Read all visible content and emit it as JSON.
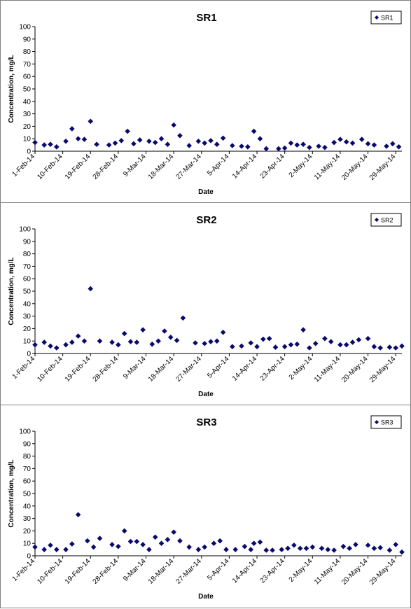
{
  "chart_data": [
    {
      "type": "scatter",
      "title": "SR1",
      "xlabel": "Date",
      "ylabel": "Concentration, mg/L",
      "ylim": [
        0,
        100
      ],
      "yticks": [
        "0",
        "10",
        "20",
        "30",
        "40",
        "50",
        "60",
        "70",
        "80",
        "90",
        "100"
      ],
      "xlim": [
        "1-Feb-14",
        "31-May-14"
      ],
      "xticks": [
        "1-Feb-14",
        "10-Feb-14",
        "19-Feb-14",
        "28-Feb-14",
        "9-Mar-14",
        "18-Mar-14",
        "27-Mar-14",
        "5-Apr-14",
        "14-Apr-14",
        "23-Apr-14",
        "2-May-14",
        "11-May-14",
        "20-May-14",
        "29-May-14"
      ],
      "grid": false,
      "legend_position": "top-right",
      "marker_color": "#0a0a6e",
      "series": [
        {
          "name": "SR1",
          "x": [
            "1-Feb-14",
            "4-Feb-14",
            "6-Feb-14",
            "8-Feb-14",
            "11-Feb-14",
            "13-Feb-14",
            "15-Feb-14",
            "17-Feb-14",
            "19-Feb-14",
            "21-Feb-14",
            "25-Feb-14",
            "27-Feb-14",
            "1-Mar-14",
            "3-Mar-14",
            "5-Mar-14",
            "7-Mar-14",
            "10-Mar-14",
            "12-Mar-14",
            "14-Mar-14",
            "16-Mar-14",
            "18-Mar-14",
            "20-Mar-14",
            "23-Mar-14",
            "26-Mar-14",
            "28-Mar-14",
            "30-Mar-14",
            "1-Apr-14",
            "3-Apr-14",
            "6-Apr-14",
            "9-Apr-14",
            "11-Apr-14",
            "13-Apr-14",
            "15-Apr-14",
            "17-Apr-14",
            "21-Apr-14",
            "23-Apr-14",
            "25-Apr-14",
            "27-Apr-14",
            "29-Apr-14",
            "1-May-14",
            "4-May-14",
            "6-May-14",
            "9-May-14",
            "11-May-14",
            "13-May-14",
            "15-May-14",
            "18-May-14",
            "20-May-14",
            "22-May-14",
            "26-May-14",
            "28-May-14",
            "30-May-14"
          ],
          "y": [
            7,
            5,
            5.5,
            3.5,
            8,
            18,
            10,
            9.5,
            24,
            5.5,
            5,
            6.5,
            8.5,
            16,
            6,
            9,
            8,
            7,
            10,
            5.5,
            21,
            12.5,
            4.5,
            8,
            6.5,
            8.5,
            5.5,
            10.5,
            4.5,
            4,
            3.5,
            16,
            10,
            2,
            2,
            2.5,
            6.5,
            5,
            5.5,
            3,
            4,
            3,
            7,
            9.5,
            7.5,
            6.5,
            9.5,
            6,
            5,
            4,
            6,
            3.5
          ]
        }
      ]
    },
    {
      "type": "scatter",
      "title": "SR2",
      "xlabel": "Date",
      "ylabel": "Concentration, mg/L",
      "ylim": [
        0,
        100
      ],
      "yticks": [
        "0",
        "10",
        "20",
        "30",
        "40",
        "50",
        "60",
        "70",
        "80",
        "90",
        "100"
      ],
      "xlim": [
        "1-Feb-14",
        "31-May-14"
      ],
      "xticks": [
        "1-Feb-14",
        "10-Feb-14",
        "19-Feb-14",
        "28-Feb-14",
        "9-Mar-14",
        "18-Mar-14",
        "27-Mar-14",
        "5-Apr-14",
        "14-Apr-14",
        "23-Apr-14",
        "2-May-14",
        "11-May-14",
        "20-May-14",
        "29-May-14"
      ],
      "grid": false,
      "legend_position": "top-right",
      "marker_color": "#0a0a6e",
      "series": [
        {
          "name": "SR2",
          "x": [
            "1-Feb-14",
            "4-Feb-14",
            "6-Feb-14",
            "8-Feb-14",
            "11-Feb-14",
            "13-Feb-14",
            "15-Feb-14",
            "17-Feb-14",
            "19-Feb-14",
            "22-Feb-14",
            "26-Feb-14",
            "28-Feb-14",
            "2-Mar-14",
            "4-Mar-14",
            "6-Mar-14",
            "8-Mar-14",
            "11-Mar-14",
            "13-Mar-14",
            "15-Mar-14",
            "17-Mar-14",
            "19-Mar-14",
            "21-Mar-14",
            "25-Mar-14",
            "28-Mar-14",
            "30-Mar-14",
            "1-Apr-14",
            "3-Apr-14",
            "6-Apr-14",
            "9-Apr-14",
            "12-Apr-14",
            "14-Apr-14",
            "16-Apr-14",
            "18-Apr-14",
            "20-Apr-14",
            "23-Apr-14",
            "25-Apr-14",
            "27-Apr-14",
            "29-Apr-14",
            "1-May-14",
            "3-May-14",
            "6-May-14",
            "8-May-14",
            "11-May-14",
            "13-May-14",
            "15-May-14",
            "17-May-14",
            "20-May-14",
            "22-May-14",
            "24-May-14",
            "27-May-14",
            "29-May-14",
            "31-May-14"
          ],
          "y": [
            7,
            9,
            6,
            4.5,
            7,
            9,
            14,
            10,
            52,
            10,
            9,
            7,
            16,
            9.5,
            9,
            19,
            7.5,
            10,
            18,
            13,
            10.5,
            28.5,
            8.5,
            8,
            9.5,
            10,
            17,
            5.5,
            6,
            8.5,
            5.5,
            11.5,
            12,
            5,
            5.5,
            7,
            7.5,
            19,
            4.5,
            8,
            12,
            9.5,
            7,
            7,
            9,
            11,
            12,
            5.5,
            4.5,
            5,
            4.5,
            6
          ]
        }
      ]
    },
    {
      "type": "scatter",
      "title": "SR3",
      "xlabel": "Date",
      "ylabel": "Concentration, mg/L",
      "ylim": [
        0,
        100
      ],
      "yticks": [
        "0",
        "10",
        "20",
        "30",
        "40",
        "50",
        "60",
        "70",
        "80",
        "90",
        "100"
      ],
      "xlim": [
        "1-Feb-14",
        "31-May-14"
      ],
      "xticks": [
        "1-Feb-14",
        "10-Feb-14",
        "19-Feb-14",
        "28-Feb-14",
        "9-Mar-14",
        "18-Mar-14",
        "27-Mar-14",
        "5-Apr-14",
        "14-Apr-14",
        "23-Apr-14",
        "2-May-14",
        "11-May-14",
        "20-May-14",
        "29-May-14"
      ],
      "grid": false,
      "legend_position": "top-right",
      "marker_color": "#0a0a6e",
      "series": [
        {
          "name": "SR3",
          "x": [
            "1-Feb-14",
            "4-Feb-14",
            "6-Feb-14",
            "8-Feb-14",
            "11-Feb-14",
            "13-Feb-14",
            "15-Feb-14",
            "18-Feb-14",
            "20-Feb-14",
            "22-Feb-14",
            "26-Feb-14",
            "28-Feb-14",
            "2-Mar-14",
            "4-Mar-14",
            "6-Mar-14",
            "8-Mar-14",
            "10-Mar-14",
            "12-Mar-14",
            "14-Mar-14",
            "16-Mar-14",
            "18-Mar-14",
            "20-Mar-14",
            "23-Mar-14",
            "26-Mar-14",
            "28-Mar-14",
            "31-Mar-14",
            "2-Apr-14",
            "4-Apr-14",
            "7-Apr-14",
            "10-Apr-14",
            "12-Apr-14",
            "13-Apr-14",
            "15-Apr-14",
            "17-Apr-14",
            "19-Apr-14",
            "22-Apr-14",
            "24-Apr-14",
            "26-Apr-14",
            "28-Apr-14",
            "30-Apr-14",
            "2-May-14",
            "5-May-14",
            "7-May-14",
            "9-May-14",
            "12-May-14",
            "14-May-14",
            "16-May-14",
            "20-May-14",
            "22-May-14",
            "24-May-14",
            "27-May-14",
            "29-May-14",
            "31-May-14"
          ],
          "y": [
            7,
            5,
            8.5,
            5,
            5,
            9.5,
            33,
            12,
            7,
            14,
            9,
            7.5,
            20,
            11.5,
            11.5,
            9,
            5,
            15,
            10,
            13,
            19,
            12,
            7,
            5,
            7,
            10,
            12,
            5,
            5,
            7.5,
            5,
            10,
            11,
            4.5,
            4.5,
            5,
            6,
            8.5,
            6,
            6,
            7,
            6,
            5,
            4.5,
            7.5,
            6,
            9,
            8.5,
            6,
            6.5,
            4.5,
            9,
            3
          ]
        }
      ]
    }
  ]
}
